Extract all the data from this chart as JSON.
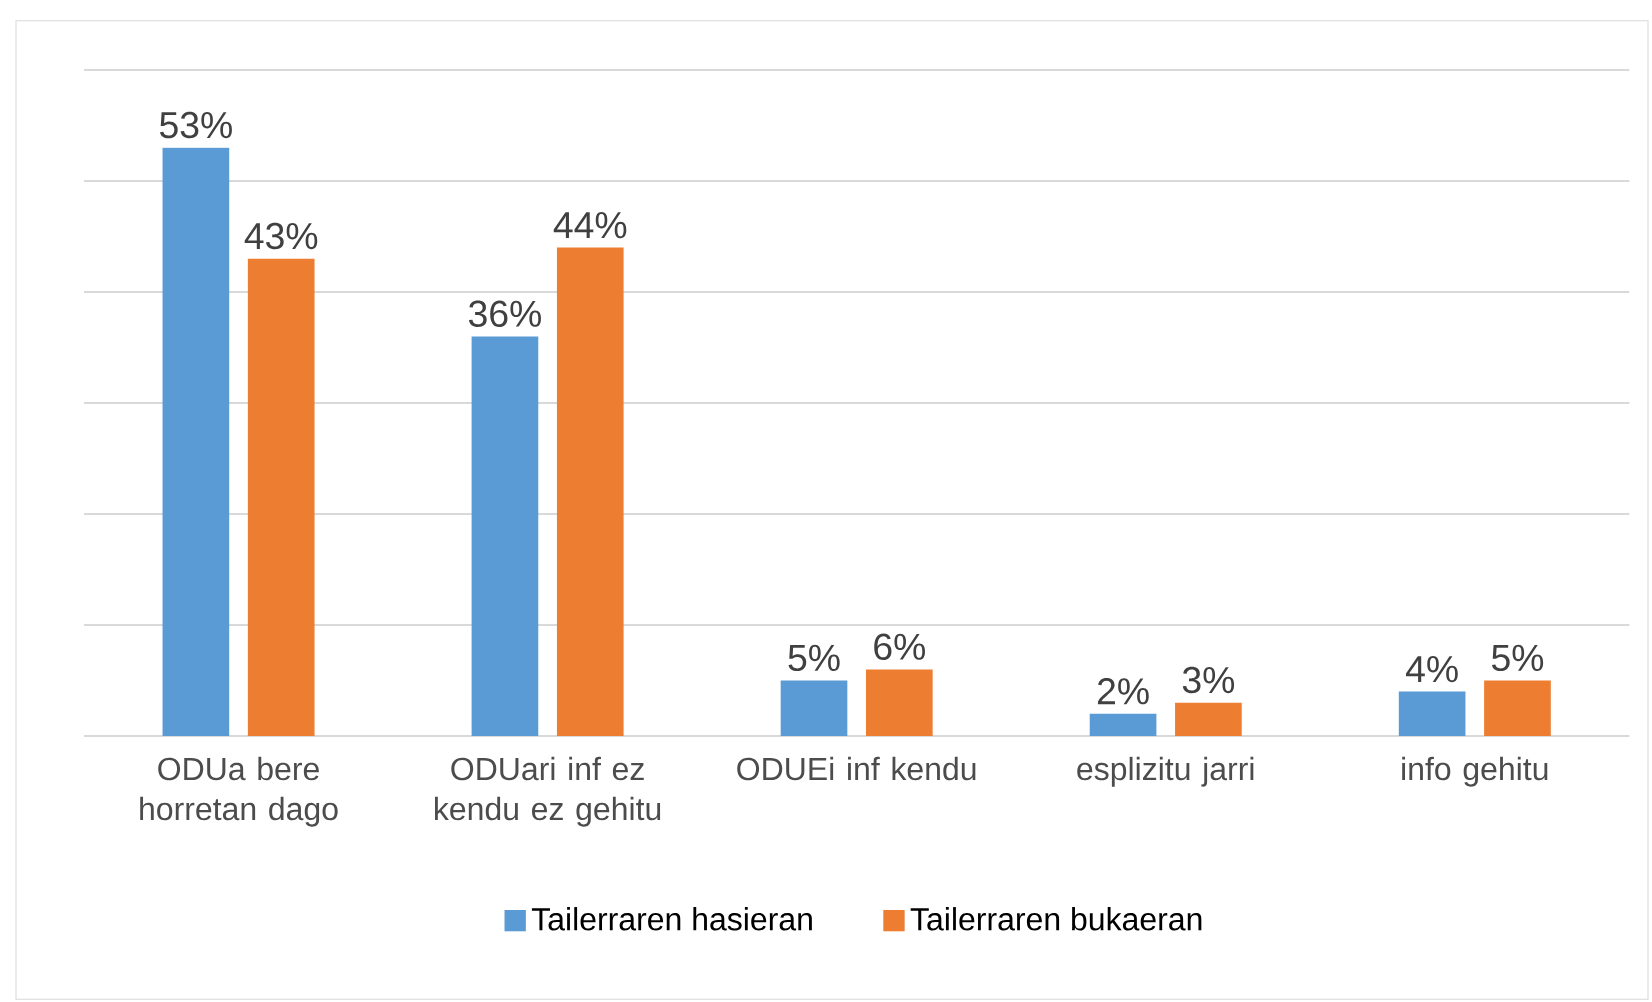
{
  "chart_data": {
    "type": "bar",
    "categories": [
      "ODUa bere horretan dago",
      "ODUari inf ez kendu ez gehitu",
      "ODUEi inf kendu",
      "esplizitu jarri",
      "info gehitu"
    ],
    "series": [
      {
        "name": "Tailerraren hasieran",
        "color": "#5b9bd5",
        "values": [
          53,
          36,
          5,
          2,
          4
        ],
        "value_labels": [
          "53%",
          "36%",
          "5%",
          "2%",
          "4%"
        ]
      },
      {
        "name": "Tailerraren bukaeran",
        "color": "#ed7d31",
        "values": [
          43,
          44,
          6,
          3,
          5
        ],
        "value_labels": [
          "43%",
          "44%",
          "6%",
          "3%",
          "5%"
        ]
      }
    ],
    "ylim": [
      0,
      60
    ],
    "yticks": [
      {
        "value": 0,
        "label": null
      },
      {
        "value": 10,
        "label": null
      },
      {
        "value": 20,
        "label": null
      },
      {
        "value": 30,
        "label": null
      },
      {
        "value": 40,
        "label": null
      },
      {
        "value": 50,
        "label": null
      },
      {
        "value": 60,
        "label": null
      }
    ],
    "tick_labels": "x",
    "grid": "y",
    "legend": "bottom"
  }
}
